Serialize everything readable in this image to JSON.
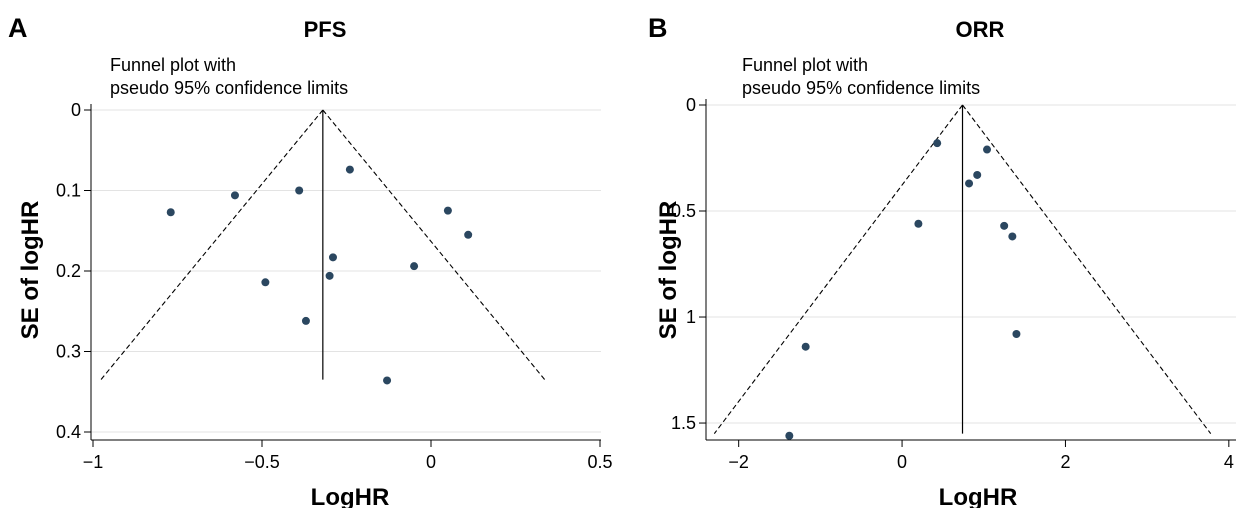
{
  "chart_data": [
    {
      "panel": "A",
      "type": "scatter",
      "title": "PFS",
      "note_lines": [
        "Funnel plot with",
        "pseudo 95% confidence limits"
      ],
      "xlabel": "LogHR",
      "ylabel": "SE of logHR",
      "xlim": [
        -1.0,
        0.5
      ],
      "ylim": [
        0,
        0.4
      ],
      "y_reversed": true,
      "xticks": [
        -1,
        -0.5,
        0,
        0.5
      ],
      "xtick_labels": [
        "−1",
        "−0.5",
        "0",
        "0.5"
      ],
      "yticks": [
        0,
        0.1,
        0.2,
        0.3,
        0.4
      ],
      "ytick_labels": [
        "0",
        "0.1",
        "0.2",
        "0.3",
        "0.4"
      ],
      "grid": "horizontal",
      "pooled_estimate": -0.32,
      "se_max": 0.335,
      "marker_color": "#2b4760",
      "points": [
        {
          "x": -0.77,
          "y": 0.127
        },
        {
          "x": -0.58,
          "y": 0.106
        },
        {
          "x": -0.39,
          "y": 0.1
        },
        {
          "x": -0.24,
          "y": 0.074
        },
        {
          "x": 0.05,
          "y": 0.125
        },
        {
          "x": 0.11,
          "y": 0.155
        },
        {
          "x": -0.29,
          "y": 0.183
        },
        {
          "x": -0.3,
          "y": 0.206
        },
        {
          "x": -0.49,
          "y": 0.214
        },
        {
          "x": -0.05,
          "y": 0.194
        },
        {
          "x": -0.37,
          "y": 0.262
        },
        {
          "x": -0.13,
          "y": 0.336
        }
      ]
    },
    {
      "panel": "B",
      "type": "scatter",
      "title": "ORR",
      "note_lines": [
        "Funnel plot with",
        "pseudo 95% confidence limits"
      ],
      "xlabel": "LogHR",
      "ylabel": "SE of logHR",
      "xlim": [
        -2.4,
        4.1
      ],
      "ylim": [
        0,
        1.58
      ],
      "y_reversed": true,
      "xticks": [
        -2,
        0,
        2,
        4
      ],
      "xtick_labels": [
        "−2",
        "0",
        "2",
        "4"
      ],
      "yticks": [
        0,
        0.5,
        1,
        1.5
      ],
      "ytick_labels": [
        "0",
        "0.5",
        "1",
        "1.5"
      ],
      "grid": "horizontal",
      "pooled_estimate": 0.74,
      "se_max": 1.55,
      "marker_color": "#2b4760",
      "points": [
        {
          "x": 0.43,
          "y": 0.18
        },
        {
          "x": 1.04,
          "y": 0.21
        },
        {
          "x": 0.92,
          "y": 0.33
        },
        {
          "x": 0.82,
          "y": 0.37
        },
        {
          "x": 0.2,
          "y": 0.56
        },
        {
          "x": 1.25,
          "y": 0.57
        },
        {
          "x": 1.35,
          "y": 0.62
        },
        {
          "x": 1.4,
          "y": 1.08
        },
        {
          "x": -1.18,
          "y": 1.14
        },
        {
          "x": -1.38,
          "y": 1.56
        }
      ]
    }
  ]
}
